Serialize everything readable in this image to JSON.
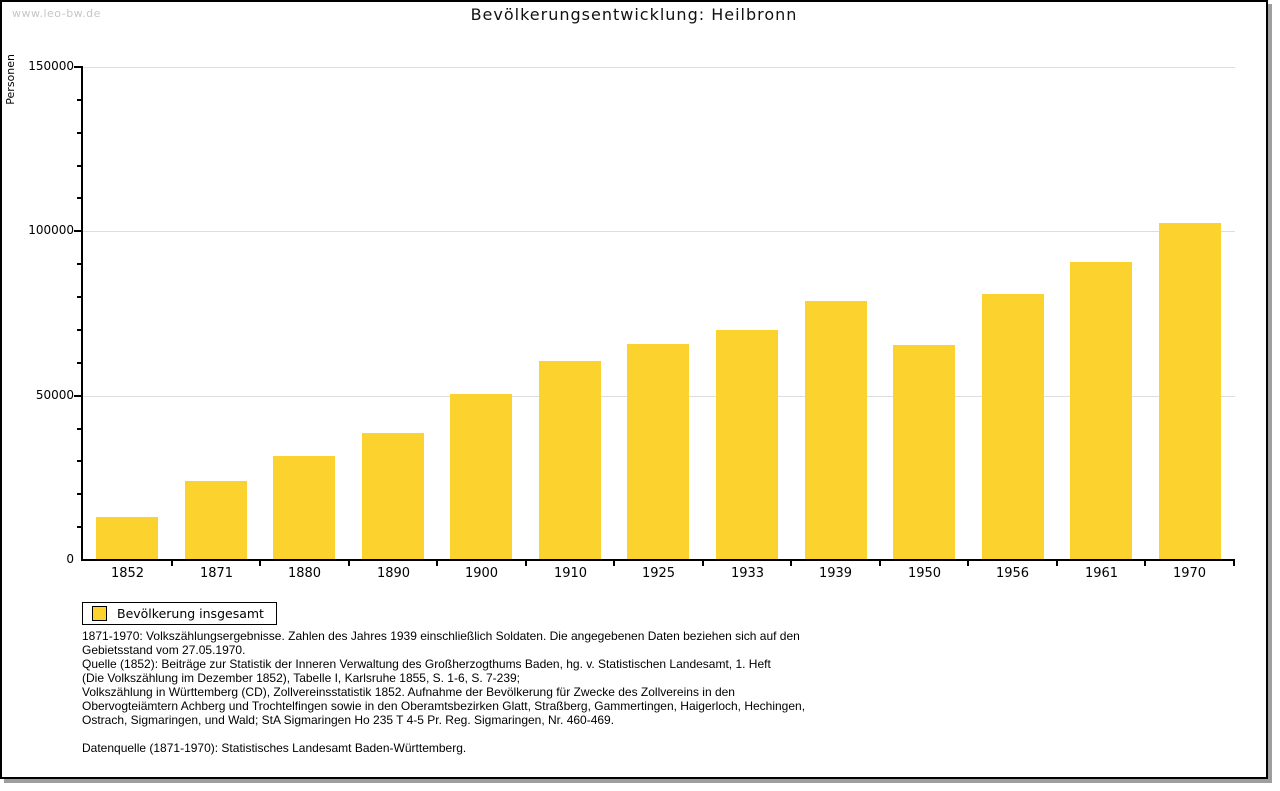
{
  "page": {
    "watermark": "www.leo-bw.de",
    "title": "Bevölkerungsentwicklung: Heilbronn"
  },
  "chart_data": {
    "type": "bar",
    "title": "Bevölkerungsentwicklung: Heilbronn",
    "xlabel": "",
    "ylabel": "Personen",
    "categories": [
      "1852",
      "1871",
      "1880",
      "1890",
      "1900",
      "1910",
      "1925",
      "1933",
      "1939",
      "1950",
      "1956",
      "1961",
      "1970"
    ],
    "values": [
      12800,
      23700,
      31300,
      38300,
      50100,
      60200,
      65400,
      69700,
      78500,
      65100,
      80600,
      90400,
      102200
    ],
    "series_name": "Bevölkerung insgesamt",
    "ylim": [
      0,
      150000
    ],
    "y_major_ticks": [
      0,
      50000,
      100000,
      150000
    ],
    "y_minor_step": 10000,
    "grid": "horizontal-major",
    "legend_position": "bottom-left",
    "bar_color": "#FCD32E",
    "gridline_color": "#dedede"
  },
  "legend": {
    "label": "Bevölkerung insgesamt"
  },
  "footnotes": {
    "lines": [
      "1871-1970: Volkszählungsergebnisse. Zahlen des Jahres 1939 einschließlich Soldaten. Die angegebenen Daten beziehen sich auf den",
      "Gebietsstand vom 27.05.1970.",
      "Quelle (1852): Beiträge zur Statistik der Inneren Verwaltung des Großherzogthums Baden, hg. v. Statistischen Landesamt, 1. Heft",
      "(Die Volkszählung im Dezember 1852), Tabelle I, Karlsruhe 1855, S. 1-6, S. 7-239;",
      "Volkszählung in Württemberg (CD), Zollvereinsstatistik 1852. Aufnahme der Bevölkerung für Zwecke des Zollvereins in den",
      "Obervogteiämtern Achberg und Trochtelfingen sowie in den Oberamtsbezirken Glatt, Straßberg, Gammertingen, Haigerloch, Hechingen,",
      "Ostrach, Sigmaringen, und Wald; StA Sigmaringen Ho 235 T 4-5 Pr. Reg. Sigmaringen, Nr. 460-469."
    ],
    "source": "Datenquelle (1871-1970): Statistisches Landesamt Baden-Württemberg."
  }
}
